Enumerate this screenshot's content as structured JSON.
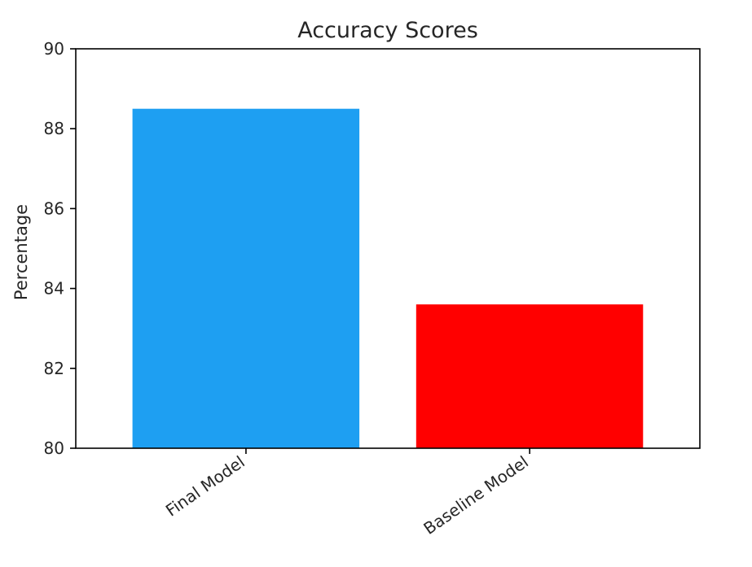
{
  "chart_data": {
    "type": "bar",
    "title": "Accuracy Scores",
    "xlabel": "",
    "ylabel": "Percentage",
    "categories": [
      "Final Model",
      "Baseline Model"
    ],
    "values": [
      88.5,
      83.6
    ],
    "colors": [
      "#1e9ff2",
      "#ff0000"
    ],
    "ylim": [
      80,
      90
    ],
    "yticks": [
      "80",
      "82",
      "84",
      "86",
      "88",
      "90"
    ],
    "grid": false,
    "legend": "none"
  }
}
